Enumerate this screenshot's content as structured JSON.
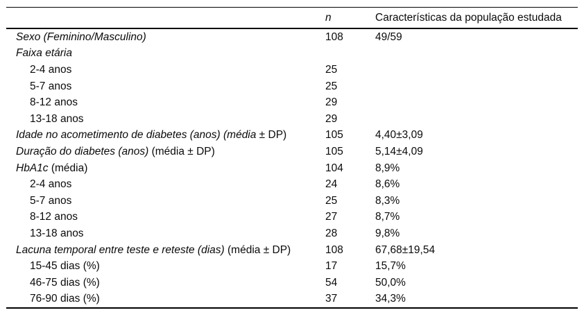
{
  "table": {
    "header": {
      "label_col": "",
      "n_col": "n",
      "value_col": "Características da população estudada"
    },
    "rows": [
      {
        "label_italic": "Sexo (Feminino/Masculino)",
        "label_regular": "",
        "indent": false,
        "n": "108",
        "value": "49/59"
      },
      {
        "label_italic": "Faixa etária",
        "label_regular": "",
        "indent": false,
        "n": "",
        "value": ""
      },
      {
        "label_italic": "",
        "label_regular": "2-4 anos",
        "indent": true,
        "n": "25",
        "value": ""
      },
      {
        "label_italic": "",
        "label_regular": "5-7 anos",
        "indent": true,
        "n": "25",
        "value": ""
      },
      {
        "label_italic": "",
        "label_regular": "8-12 anos",
        "indent": true,
        "n": "29",
        "value": ""
      },
      {
        "label_italic": "",
        "label_regular": "13-18 anos",
        "indent": true,
        "n": "29",
        "value": ""
      },
      {
        "label_italic": "Idade no acometimento de diabetes (anos) (média",
        "label_regular": " ± DP)",
        "indent": false,
        "n": "105",
        "value": "4,40±3,09"
      },
      {
        "label_italic": "Duração do diabetes (anos)",
        "label_regular": " (média ± DP)",
        "indent": false,
        "n": "105",
        "value": "5,14±4,09"
      },
      {
        "label_italic": "HbA1c",
        "label_regular": " (média)",
        "indent": false,
        "n": "104",
        "value": "8,9%"
      },
      {
        "label_italic": "",
        "label_regular": "2-4 anos",
        "indent": true,
        "n": "24",
        "value": "8,6%"
      },
      {
        "label_italic": "",
        "label_regular": "5-7 anos",
        "indent": true,
        "n": "25",
        "value": "8,3%"
      },
      {
        "label_italic": "",
        "label_regular": "8-12 anos",
        "indent": true,
        "n": "27",
        "value": "8,7%"
      },
      {
        "label_italic": "",
        "label_regular": "13-18 anos",
        "indent": true,
        "n": "28",
        "value": "9,8%"
      },
      {
        "label_italic": "Lacuna temporal entre teste e reteste (dias)",
        "label_regular": " (média ± DP)",
        "indent": false,
        "n": "108",
        "value": "67,68±19,54"
      },
      {
        "label_italic": "",
        "label_regular": "15-45 dias (%)",
        "indent": true,
        "n": "17",
        "value": "15,7%"
      },
      {
        "label_italic": "",
        "label_regular": "46-75 dias (%)",
        "indent": true,
        "n": "54",
        "value": "50,0%"
      },
      {
        "label_italic": "",
        "label_regular": "76-90 dias (%)",
        "indent": true,
        "n": "37",
        "value": "34,3%"
      }
    ]
  }
}
